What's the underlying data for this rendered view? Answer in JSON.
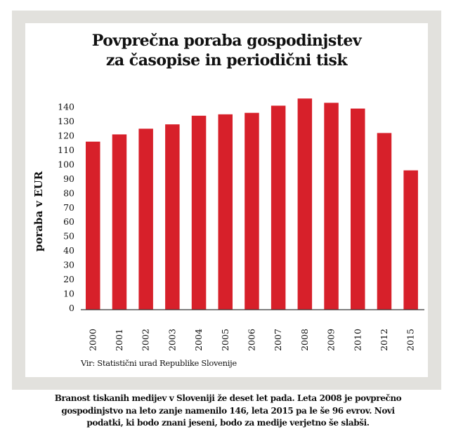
{
  "colors": {
    "frame": "#e2e1dd",
    "bar": "#d7202a",
    "text": "#111111",
    "axis": "#333333"
  },
  "chart_data": {
    "type": "bar",
    "title_lines": [
      "Povprečna poraba gospodinjstev",
      "za časopise in periodični tisk"
    ],
    "ylabel": "poraba v EUR",
    "xlabel": "",
    "categories": [
      "2000",
      "2001",
      "2002",
      "2003",
      "2004",
      "2005",
      "2006",
      "2007",
      "2008",
      "2009",
      "2010",
      "2012",
      "2015"
    ],
    "values": [
      116,
      121,
      125,
      128,
      134,
      135,
      136,
      141,
      146,
      143,
      139,
      122,
      96
    ],
    "yticks": [
      "0",
      "10",
      "20",
      "30",
      "40",
      "50",
      "60",
      "70",
      "80",
      "90",
      "100",
      "110",
      "120",
      "130",
      "140"
    ],
    "ylim": [
      0,
      146
    ],
    "grid": false,
    "legend": "none"
  },
  "source": "Vir: Statistični urad Republike Slovenije",
  "caption_lines": [
    "Branost tiskanih medijev v Sloveniji že deset let pada. Leta 2008 je povprečno",
    "gospodinjstvo na leto zanje namenilo 146, leta 2015 pa le še 96 evrov. Novi",
    "podatki, ki bodo znani jeseni, bodo za medije verjetno še slabši."
  ]
}
